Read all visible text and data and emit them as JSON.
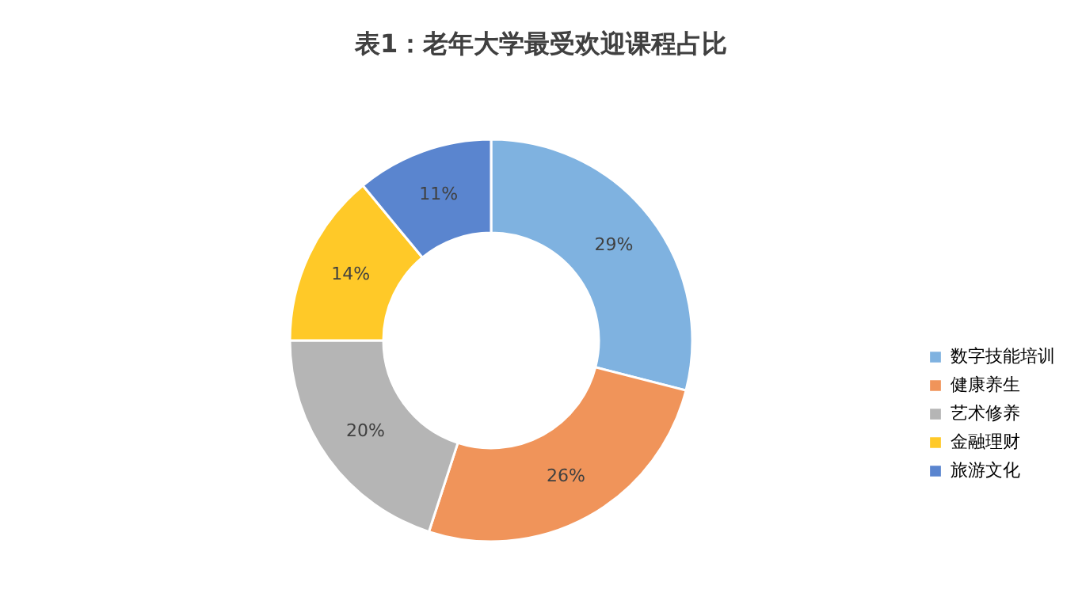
{
  "chart_data": {
    "type": "donut",
    "title": "表1：老年大学最受欢迎课程占比",
    "categories": [
      "数字技能培训",
      "健康养生",
      "艺术修养",
      "金融理财",
      "旅游文化"
    ],
    "values": [
      29,
      26,
      20,
      14,
      11
    ],
    "value_labels": [
      "29%",
      "26%",
      "20%",
      "14%",
      "11%"
    ],
    "colors": [
      "#7fb2e0",
      "#f0945a",
      "#b5b5b5",
      "#ffc928",
      "#5a85cf"
    ],
    "legend": "right"
  }
}
